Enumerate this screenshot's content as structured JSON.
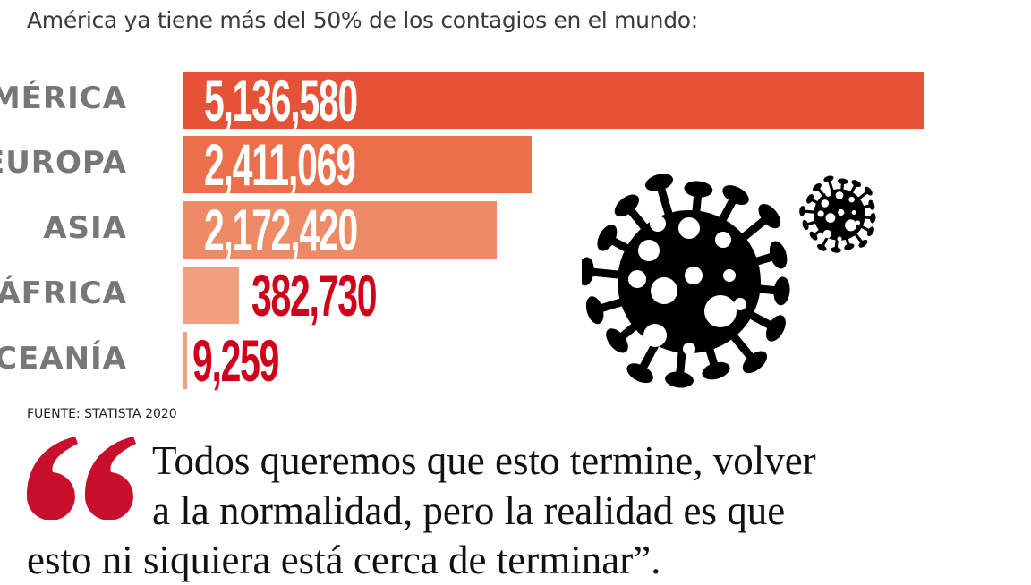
{
  "title": "América ya tiene más del 50% de los contagios en el mundo:",
  "chart_data": {
    "type": "bar",
    "orientation": "horizontal",
    "categories": [
      "AMÉRICA",
      "EUROPA",
      "ASIA",
      "ÁFRICA",
      "OCEANÍA"
    ],
    "values": [
      5136580,
      2411069,
      2172420,
      382730,
      9259
    ],
    "value_labels": [
      "5,136,580",
      "2,411,069",
      "2,172,420",
      "382,730",
      "9,259"
    ],
    "bar_colors": [
      "#e65236",
      "#ea6f4a",
      "#ee8a65",
      "#f1a07f",
      "#f1a07f"
    ],
    "label_color": "#777777",
    "outside_value_color": "#d0021b",
    "grid": false,
    "title": "América ya tiene más del 50% de los contagios en el mundo:"
  },
  "source": "FUENTE: STATISTA 2020",
  "quote": {
    "mark": "“",
    "lines": [
      "Todos queremos que esto termine, volver",
      "a la normalidad, pero la realidad es que",
      "esto ni siquiera está cerca de terminar”."
    ],
    "mark_color": "#c8102e"
  },
  "icons": [
    "virus-icon-large",
    "virus-icon-small"
  ]
}
